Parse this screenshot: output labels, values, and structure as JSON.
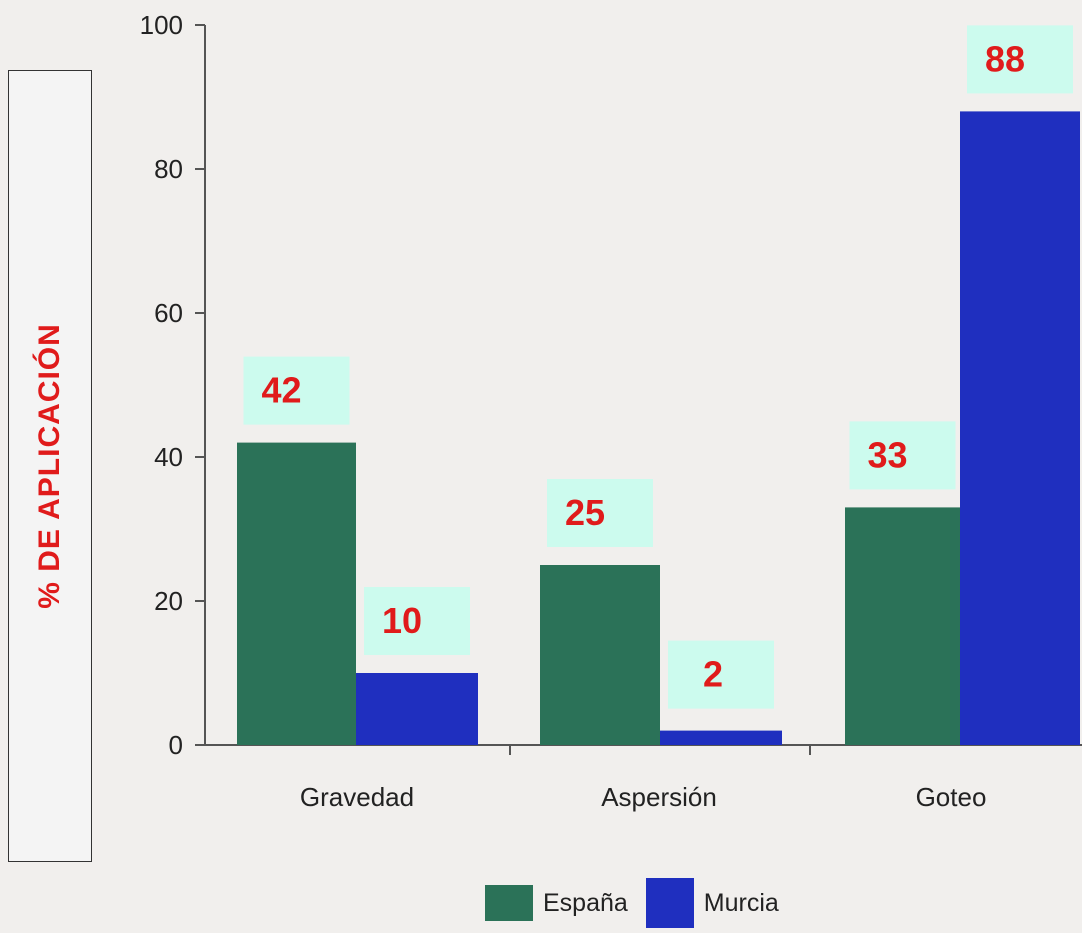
{
  "chart_data": {
    "type": "bar",
    "ylabel": "% DE APLICACIÓN",
    "xlabel": "",
    "categories": [
      "Gravedad",
      "Aspersión",
      "Goteo"
    ],
    "series": [
      {
        "name": "España",
        "values": [
          42,
          25,
          33
        ],
        "color": "#2b7258",
        "value_labels": [
          "42",
          "25",
          "33"
        ]
      },
      {
        "name": "Murcia",
        "values": [
          10,
          2,
          88
        ],
        "color": "#1f2fbf",
        "value_labels": [
          "10",
          "2",
          "88"
        ]
      }
    ],
    "ylim": [
      0,
      100
    ],
    "yticks": [
      0,
      20,
      40,
      60,
      80,
      100
    ],
    "grid": false,
    "legend_position": "bottom",
    "label_box_color": "#ccfbee",
    "label_text_color": "#e01b1b"
  }
}
